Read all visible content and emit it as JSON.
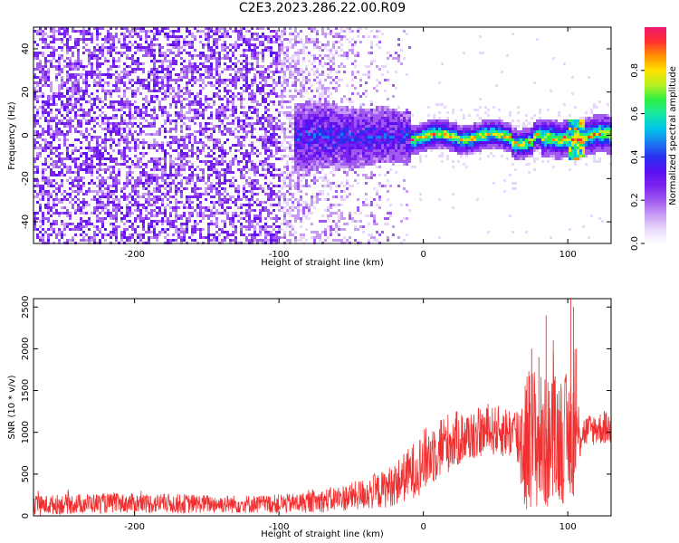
{
  "title": "C2E3.2023.286.22.00.R09",
  "colors": {
    "spectrogram_palette": [
      "#ffffff",
      "#e8d8fb",
      "#c79bf5",
      "#a05af0",
      "#7a22ee",
      "#5a10f2",
      "#2a30f0",
      "#1a7cf0",
      "#00c8e8",
      "#18e8a0",
      "#30f040",
      "#b8f020",
      "#ffe000",
      "#ff9000",
      "#ff3030",
      "#f01870"
    ],
    "snr_line": "#f03030",
    "axes": "#000000"
  },
  "chart_data": [
    {
      "type": "heatmap",
      "xlabel": "Height of straight line (km)",
      "ylabel": "Frequency (Hz)",
      "xlim": [
        -270,
        130
      ],
      "ylim": [
        -50,
        50
      ],
      "xticks": [
        -200,
        -100,
        0,
        100
      ],
      "xtick_labels": [
        "-200",
        "-100",
        "0",
        "100"
      ],
      "yticks": [
        -40,
        -20,
        0,
        20,
        40
      ],
      "ytick_labels": [
        "-40",
        "-20",
        "0",
        "20",
        "40"
      ],
      "colorbar": {
        "label": "Normalized spectral amplitude",
        "range": [
          0,
          1
        ],
        "ticks": [
          0.0,
          0.2,
          0.4,
          0.6,
          0.8
        ],
        "tick_labels": [
          "0.0",
          "0.2",
          "0.4",
          "0.6",
          "0.8"
        ]
      },
      "regions": [
        {
          "x_range": [
            -270,
            -100
          ],
          "freq_range": [
            -50,
            50
          ],
          "amplitude": "0.1-0.3, broadband speckle"
        },
        {
          "x_range": [
            -100,
            -20
          ],
          "freq_range": [
            -50,
            50
          ],
          "amplitude": "0.05-0.2, fading speckle"
        },
        {
          "x_range": [
            -90,
            -10
          ],
          "freq_range": [
            -20,
            20
          ],
          "amplitude": "0.2-0.4, broad band centered near 0 Hz"
        },
        {
          "x_range": [
            -10,
            130
          ],
          "freq_range": [
            -8,
            8
          ],
          "amplitude": "0.4-0.9, narrow band centered near 0 Hz"
        }
      ]
    },
    {
      "type": "line",
      "xlabel": "Height of straight line (km)",
      "ylabel": "SNR (10 * v/v)",
      "xlim": [
        -270,
        130
      ],
      "ylim": [
        0,
        2600
      ],
      "xticks": [
        -200,
        -100,
        0,
        100
      ],
      "xtick_labels": [
        "-200",
        "-100",
        "0",
        "100"
      ],
      "yticks": [
        0,
        500,
        1000,
        1500,
        2000,
        2500
      ],
      "ytick_labels": [
        "0",
        "500",
        "1000",
        "1500",
        "2000",
        "2500"
      ],
      "series": [
        {
          "x": [
            -270,
            -250,
            -230,
            -210,
            -190,
            -170,
            -150,
            -130,
            -110,
            -90,
            -70,
            -50,
            -30,
            -20,
            -10,
            0,
            10,
            20,
            30,
            40,
            50,
            60,
            65,
            70,
            75,
            80,
            85,
            90,
            95,
            100,
            105,
            110,
            120,
            130
          ],
          "mean": [
            120,
            140,
            150,
            150,
            150,
            145,
            145,
            140,
            140,
            150,
            180,
            230,
            300,
            380,
            500,
            650,
            820,
            900,
            950,
            1000,
            1020,
            1000,
            950,
            900,
            950,
            900,
            850,
            900,
            950,
            900,
            950,
            1000,
            1050,
            1050
          ],
          "spread": [
            120,
            120,
            120,
            120,
            120,
            120,
            110,
            110,
            110,
            120,
            140,
            170,
            220,
            260,
            320,
            380,
            400,
            350,
            320,
            300,
            300,
            320,
            400,
            900,
            900,
            850,
            800,
            800,
            800,
            800,
            700,
            200,
            200,
            200
          ],
          "peaks": [
            [
              75,
              2000
            ],
            [
              80,
              1900
            ],
            [
              85,
              2400
            ],
            [
              90,
              2100
            ],
            [
              102,
              2600
            ],
            [
              104,
              2500
            ],
            [
              106,
              2000
            ]
          ]
        }
      ]
    }
  ]
}
